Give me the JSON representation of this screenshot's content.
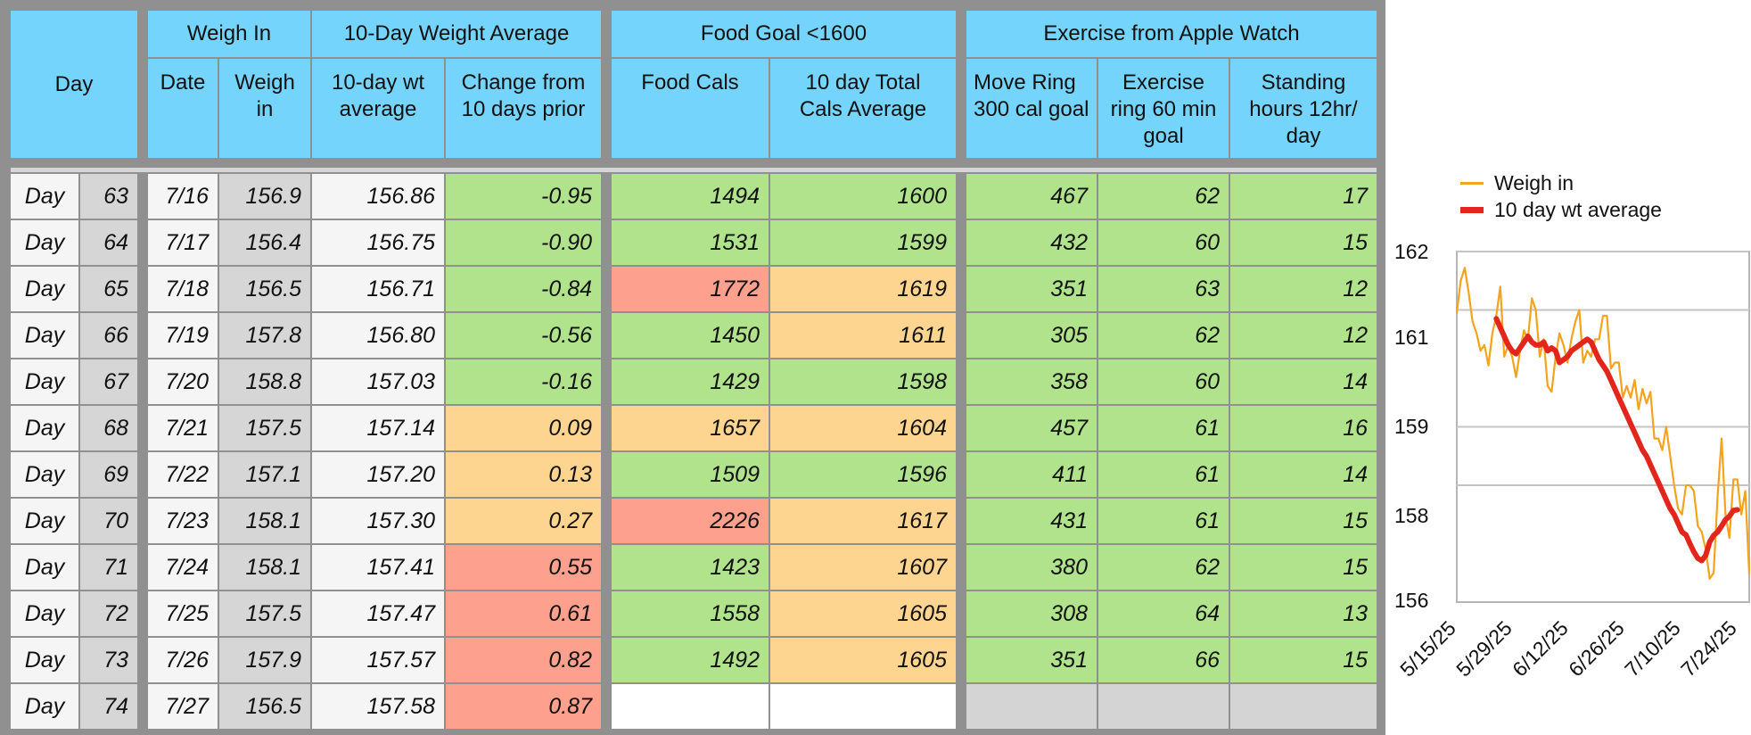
{
  "headers": {
    "day": "Day",
    "group_weigh_in": "Weigh In",
    "group_avg": "10-Day Weight Average",
    "group_food": "Food Goal <1600",
    "group_exercise": "Exercise from Apple Watch",
    "date": "Date",
    "weigh_in": "Weigh in",
    "avg": "10-day wt average",
    "change": "Change from 10 days prior",
    "food_cals": "Food Cals",
    "cals_avg": "10 day Total Cals Average",
    "move": "Move Ring 300 cal goal",
    "exercise": "Exercise ring 60 min goal",
    "standing": "Standing hours 12hr/ day"
  },
  "rows": [
    {
      "day_label": "Day",
      "day": "63",
      "date": "7/16",
      "weigh": "156.9",
      "avg": "156.86",
      "change": "-0.95",
      "change_status": "ok",
      "food": "1494",
      "food_status": "ok",
      "cals_avg": "1600",
      "cals_status": "ok",
      "move": "467",
      "exercise": "62",
      "standing": "17"
    },
    {
      "day_label": "Day",
      "day": "64",
      "date": "7/17",
      "weigh": "156.4",
      "avg": "156.75",
      "change": "-0.90",
      "change_status": "ok",
      "food": "1531",
      "food_status": "ok",
      "cals_avg": "1599",
      "cals_status": "ok",
      "move": "432",
      "exercise": "60",
      "standing": "15"
    },
    {
      "day_label": "Day",
      "day": "65",
      "date": "7/18",
      "weigh": "156.5",
      "avg": "156.71",
      "change": "-0.84",
      "change_status": "ok",
      "food": "1772",
      "food_status": "bad",
      "cals_avg": "1619",
      "cals_status": "warn",
      "move": "351",
      "exercise": "63",
      "standing": "12"
    },
    {
      "day_label": "Day",
      "day": "66",
      "date": "7/19",
      "weigh": "157.8",
      "avg": "156.80",
      "change": "-0.56",
      "change_status": "ok",
      "food": "1450",
      "food_status": "ok",
      "cals_avg": "1611",
      "cals_status": "warn",
      "move": "305",
      "exercise": "62",
      "standing": "12"
    },
    {
      "day_label": "Day",
      "day": "67",
      "date": "7/20",
      "weigh": "158.8",
      "avg": "157.03",
      "change": "-0.16",
      "change_status": "ok",
      "food": "1429",
      "food_status": "ok",
      "cals_avg": "1598",
      "cals_status": "ok",
      "move": "358",
      "exercise": "60",
      "standing": "14"
    },
    {
      "day_label": "Day",
      "day": "68",
      "date": "7/21",
      "weigh": "157.5",
      "avg": "157.14",
      "change": "0.09",
      "change_status": "warn",
      "food": "1657",
      "food_status": "warn",
      "cals_avg": "1604",
      "cals_status": "warn",
      "move": "457",
      "exercise": "61",
      "standing": "16"
    },
    {
      "day_label": "Day",
      "day": "69",
      "date": "7/22",
      "weigh": "157.1",
      "avg": "157.20",
      "change": "0.13",
      "change_status": "warn",
      "food": "1509",
      "food_status": "ok",
      "cals_avg": "1596",
      "cals_status": "ok",
      "move": "411",
      "exercise": "61",
      "standing": "14"
    },
    {
      "day_label": "Day",
      "day": "70",
      "date": "7/23",
      "weigh": "158.1",
      "avg": "157.30",
      "change": "0.27",
      "change_status": "warn",
      "food": "2226",
      "food_status": "bad",
      "cals_avg": "1617",
      "cals_status": "warn",
      "move": "431",
      "exercise": "61",
      "standing": "15"
    },
    {
      "day_label": "Day",
      "day": "71",
      "date": "7/24",
      "weigh": "158.1",
      "avg": "157.41",
      "change": "0.55",
      "change_status": "bad",
      "food": "1423",
      "food_status": "ok",
      "cals_avg": "1607",
      "cals_status": "warn",
      "move": "380",
      "exercise": "62",
      "standing": "15"
    },
    {
      "day_label": "Day",
      "day": "72",
      "date": "7/25",
      "weigh": "157.5",
      "avg": "157.47",
      "change": "0.61",
      "change_status": "bad",
      "food": "1558",
      "food_status": "ok",
      "cals_avg": "1605",
      "cals_status": "warn",
      "move": "308",
      "exercise": "64",
      "standing": "13"
    },
    {
      "day_label": "Day",
      "day": "73",
      "date": "7/26",
      "weigh": "157.9",
      "avg": "157.57",
      "change": "0.82",
      "change_status": "bad",
      "food": "1492",
      "food_status": "ok",
      "cals_avg": "1605",
      "cals_status": "warn",
      "move": "351",
      "exercise": "66",
      "standing": "15"
    },
    {
      "day_label": "Day",
      "day": "74",
      "date": "7/27",
      "weigh": "156.5",
      "avg": "157.58",
      "change": "0.87",
      "change_status": "bad",
      "food": "",
      "food_status": "blank",
      "cals_avg": "",
      "cals_status": "blank",
      "move": "",
      "exercise": "",
      "standing": ""
    }
  ],
  "colors": {
    "header": "#75d4fb",
    "ok": "#b0e38b",
    "warn": "#fed590",
    "bad": "#fda08e",
    "weigh_line": "#f5a21c",
    "avg_line": "#e3261c"
  },
  "chart_data": {
    "type": "line",
    "legend": [
      "Weigh in",
      "10 day wt average"
    ],
    "legend_position": "top",
    "ylim": [
      156,
      162
    ],
    "yticks": [
      "156",
      "158",
      "159",
      "161",
      "162"
    ],
    "xticks": [
      "5/15/25",
      "5/29/25",
      "6/12/25",
      "6/26/25",
      "7/10/25",
      "7/24/25"
    ],
    "grid": true,
    "series": [
      {
        "name": "Weigh in",
        "color": "#f5a21c",
        "values": [
          160.95,
          161.5,
          161.72,
          161.3,
          160.8,
          160.6,
          160.3,
          160.4,
          160.05,
          160.6,
          160.9,
          161.4,
          160.2,
          160.4,
          160.2,
          159.85,
          160.3,
          160.65,
          160.5,
          161.2,
          161.0,
          160.2,
          160.5,
          159.7,
          159.6,
          160.2,
          160.6,
          160.4,
          160.1,
          160.5,
          160.8,
          161.0,
          160.1,
          160.3,
          160.2,
          160.5,
          160.5,
          160.9,
          160.9,
          160.0,
          160.1,
          160.1,
          159.5,
          159.7,
          159.5,
          159.8,
          159.3,
          159.65,
          159.4,
          159.6,
          158.8,
          158.8,
          158.6,
          159.0,
          158.5,
          158.0,
          157.6,
          157.5,
          158.0,
          158.0,
          157.9,
          157.3,
          157.2,
          156.9,
          156.4,
          156.5,
          157.8,
          158.8,
          157.5,
          157.1,
          158.1,
          158.1,
          157.5,
          157.9,
          156.5
        ]
      },
      {
        "name": "10 day wt average",
        "color": "#e3261c",
        "start_index": 10,
        "values": [
          160.85,
          160.7,
          160.55,
          160.4,
          160.3,
          160.25,
          160.35,
          160.45,
          160.55,
          160.45,
          160.4,
          160.4,
          160.45,
          160.3,
          160.35,
          160.3,
          160.1,
          160.15,
          160.2,
          160.3,
          160.35,
          160.4,
          160.45,
          160.5,
          160.45,
          160.3,
          160.15,
          160.05,
          159.95,
          159.8,
          159.65,
          159.5,
          159.35,
          159.2,
          159.05,
          158.9,
          158.75,
          158.6,
          158.5,
          158.35,
          158.2,
          158.05,
          157.9,
          157.75,
          157.6,
          157.5,
          157.35,
          157.2,
          157.15,
          157.0,
          156.86,
          156.75,
          156.71,
          156.8,
          157.03,
          157.14,
          157.2,
          157.3,
          157.41,
          157.47,
          157.57,
          157.58
        ]
      }
    ]
  }
}
